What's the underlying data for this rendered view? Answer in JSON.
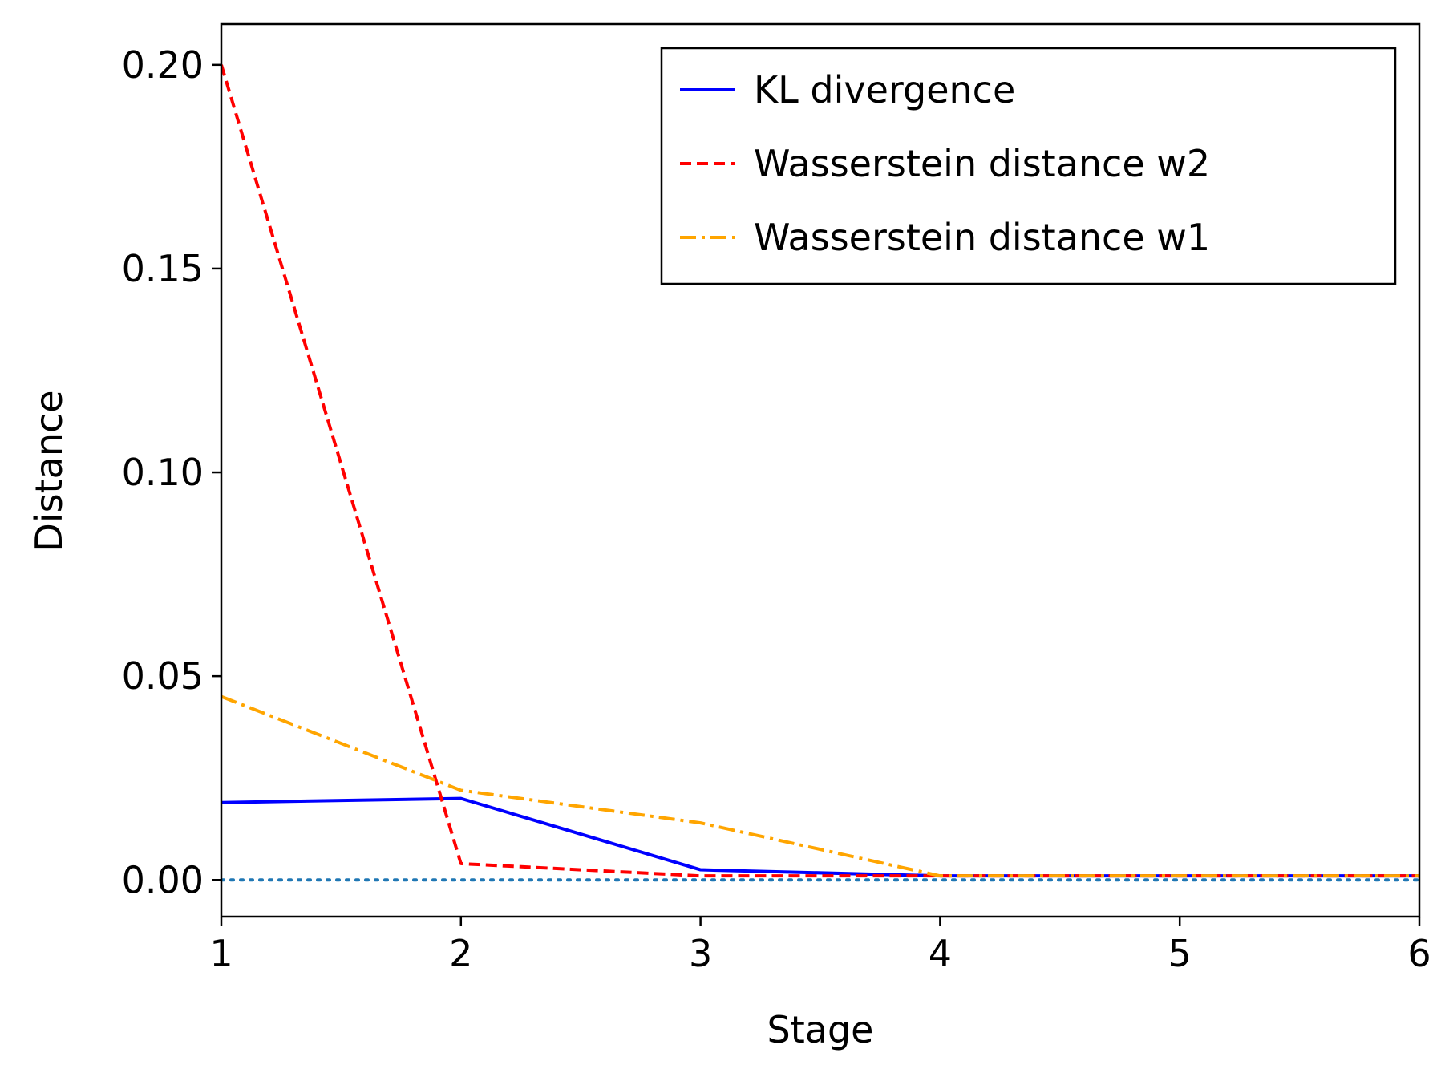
{
  "chart_data": {
    "type": "line",
    "xlabel": "Stage",
    "ylabel": "Distance",
    "x": [
      1,
      2,
      3,
      4,
      5,
      6
    ],
    "xlim": [
      1,
      6
    ],
    "ylim": [
      -0.009,
      0.21
    ],
    "xticks": [
      1,
      2,
      3,
      4,
      5,
      6
    ],
    "yticks": [
      0.0,
      0.05,
      0.1,
      0.15,
      0.2
    ],
    "ytick_labels": [
      "0.00",
      "0.05",
      "0.10",
      "0.15",
      "0.20"
    ],
    "grid": false,
    "legend_position": "top-right",
    "reference_line": {
      "y": 0,
      "style": "dotted",
      "color": "#1f77b4"
    },
    "series": [
      {
        "name": "KL divergence",
        "values": [
          0.019,
          0.02,
          0.0025,
          0.001,
          0.001,
          0.001
        ],
        "color": "#0000ff",
        "style": "solid"
      },
      {
        "name": "Wasserstein distance w2",
        "values": [
          0.2,
          0.004,
          0.001,
          0.001,
          0.001,
          0.001
        ],
        "color": "#ff0000",
        "style": "dashed"
      },
      {
        "name": "Wasserstein distance w1",
        "values": [
          0.045,
          0.022,
          0.014,
          0.001,
          0.001,
          0.001
        ],
        "color": "#ffa500",
        "style": "dashdot"
      }
    ]
  }
}
